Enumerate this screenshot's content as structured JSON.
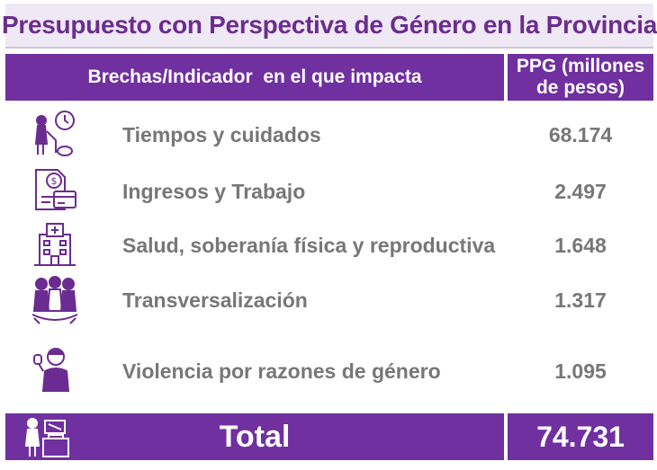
{
  "title": "Presupuesto con Perspectiva de Género en la Provincia",
  "header": {
    "col1": "Brechas/Indicador  en el que impacta",
    "col2_line1": "PPG (millones",
    "col2_line2": "de pesos)"
  },
  "rows": [
    {
      "label": "Tiempos y cuidados",
      "value": "68.174",
      "icon": "caregiver-clock-icon"
    },
    {
      "label": "Ingresos y Trabajo",
      "value": "2.497",
      "icon": "money-document-icon"
    },
    {
      "label": "Salud, soberanía física y reproductiva",
      "value": "1.648",
      "icon": "hospital-icon"
    },
    {
      "label": "Transversalización",
      "value": "1.317",
      "icon": "women-group-icon"
    },
    {
      "label": "Violencia por razones de género",
      "value": "1.095",
      "icon": "woman-stop-icon"
    }
  ],
  "total": {
    "label": "Total",
    "value": "74.731",
    "icon": "voting-women-icon"
  },
  "colors": {
    "accent": "#7030a0",
    "title_text": "#6b2d8e",
    "body_text": "#777777",
    "icon": "#6a2c91"
  }
}
